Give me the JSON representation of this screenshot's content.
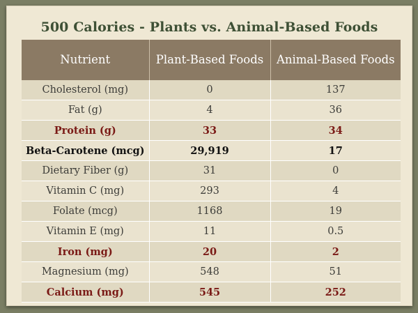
{
  "title": "500 Calories - Plants vs. Animal-Based Foods",
  "table": {
    "headers": [
      "Nutrient",
      "Plant-Based Foods",
      "Animal-Based Foods"
    ],
    "rows": [
      {
        "nutrient": "Cholesterol (mg)",
        "plant": "0",
        "animal": "137"
      },
      {
        "nutrient": "Fat (g)",
        "plant": "4",
        "animal": "36"
      },
      {
        "nutrient": "Protein (g)",
        "plant": "33",
        "animal": "34"
      },
      {
        "nutrient": "Beta-Carotene (mcg)",
        "plant": "29,919",
        "animal": "17"
      },
      {
        "nutrient": "Dietary Fiber (g)",
        "plant": "31",
        "animal": "0"
      },
      {
        "nutrient": "Vitamin C (mg)",
        "plant": "293",
        "animal": "4"
      },
      {
        "nutrient": "Folate (mcg)",
        "plant": "1168",
        "animal": "19"
      },
      {
        "nutrient": "Vitamin E (mg)",
        "plant": "11",
        "animal": "0.5"
      },
      {
        "nutrient": "Iron (mg)",
        "plant": "20",
        "animal": "2"
      },
      {
        "nutrient": "Magnesium (mg)",
        "plant": "548",
        "animal": "51"
      },
      {
        "nutrient": "Calcium (mg)",
        "plant": "545",
        "animal": "252"
      }
    ]
  }
}
